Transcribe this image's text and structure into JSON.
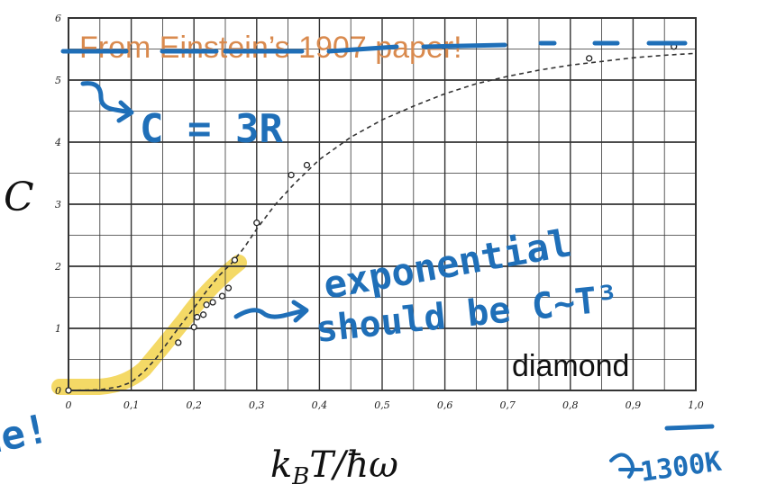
{
  "chart_data": {
    "type": "scatter",
    "title": "From Einstein’s 1907 paper!",
    "ylabel": "C",
    "xlabel_tex": "k_B T / ħω",
    "xlim": [
      0,
      1.0
    ],
    "ylim": [
      0,
      6
    ],
    "grid": true,
    "x_ticks": [
      "0",
      "0,1",
      "0,2",
      "0,3",
      "0,4",
      "0,5",
      "0,6",
      "0,7",
      "0,8",
      "0,9",
      "1,0"
    ],
    "y_ticks": [
      "0",
      "1",
      "2",
      "3",
      "4",
      "5",
      "6"
    ],
    "series": [
      {
        "kind": "theory_curve",
        "x": [
          0.0,
          0.05,
          0.08,
          0.1,
          0.12,
          0.14,
          0.16,
          0.18,
          0.2,
          0.22,
          0.24,
          0.26,
          0.28,
          0.3,
          0.33,
          0.36,
          0.4,
          0.45,
          0.5,
          0.55,
          0.6,
          0.65,
          0.7,
          0.75,
          0.8,
          0.85,
          0.9,
          0.95,
          1.0
        ],
        "y": [
          0.0,
          0.01,
          0.06,
          0.13,
          0.3,
          0.52,
          0.8,
          1.07,
          1.33,
          1.6,
          1.85,
          2.05,
          2.3,
          2.6,
          3.0,
          3.33,
          3.72,
          4.08,
          4.36,
          4.58,
          4.78,
          4.94,
          5.06,
          5.16,
          5.24,
          5.3,
          5.36,
          5.4,
          5.43
        ]
      },
      {
        "kind": "measurements",
        "x": [
          0.0,
          0.175,
          0.2,
          0.205,
          0.215,
          0.22,
          0.23,
          0.245,
          0.255,
          0.265,
          0.3,
          0.355,
          0.38,
          0.83,
          0.965
        ],
        "y": [
          0.0,
          0.77,
          1.02,
          1.18,
          1.22,
          1.38,
          1.42,
          1.52,
          1.65,
          2.1,
          2.7,
          3.47,
          3.63,
          5.35,
          5.54
        ]
      }
    ],
    "annotations": {
      "c_equals_3r": "C = 3R",
      "exponential": "exponential",
      "should_be": "should be C~T³",
      "diamond": "diamond",
      "temperature": "1300K",
      "left_fragment": "de!"
    },
    "colors": {
      "title": "#D98A4E",
      "ink": "#1F6FB8",
      "highlight": "#F2D24B",
      "curve": "#333333",
      "grid": "#333333"
    }
  }
}
